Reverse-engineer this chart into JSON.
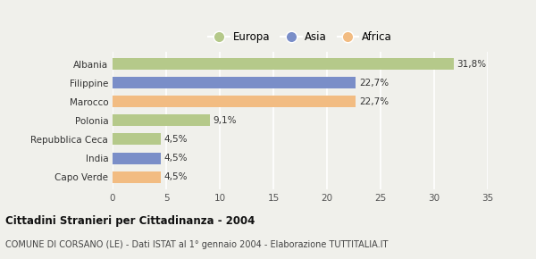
{
  "categories": [
    "Capo Verde",
    "India",
    "Repubblica Ceca",
    "Polonia",
    "Marocco",
    "Filippine",
    "Albania"
  ],
  "values": [
    4.5,
    4.5,
    4.5,
    9.1,
    22.7,
    22.7,
    31.8
  ],
  "labels": [
    "4,5%",
    "4,5%",
    "4,5%",
    "9,1%",
    "22,7%",
    "22,7%",
    "31,8%"
  ],
  "colors": [
    "#f2bc82",
    "#7a8ec8",
    "#b5c98a",
    "#b5c98a",
    "#f2bc82",
    "#7a8ec8",
    "#b5c98a"
  ],
  "legend_labels": [
    "Europa",
    "Asia",
    "Africa"
  ],
  "legend_colors": [
    "#b5c98a",
    "#7a8ec8",
    "#f2bc82"
  ],
  "title": "Cittadini Stranieri per Cittadinanza - 2004",
  "subtitle": "COMUNE DI CORSANO (LE) - Dati ISTAT al 1° gennaio 2004 - Elaborazione TUTTITALIA.IT",
  "xlim": [
    0,
    35
  ],
  "xticks": [
    0,
    5,
    10,
    15,
    20,
    25,
    30,
    35
  ],
  "background_color": "#f0f0eb",
  "grid_color": "#ffffff",
  "bar_height": 0.62
}
